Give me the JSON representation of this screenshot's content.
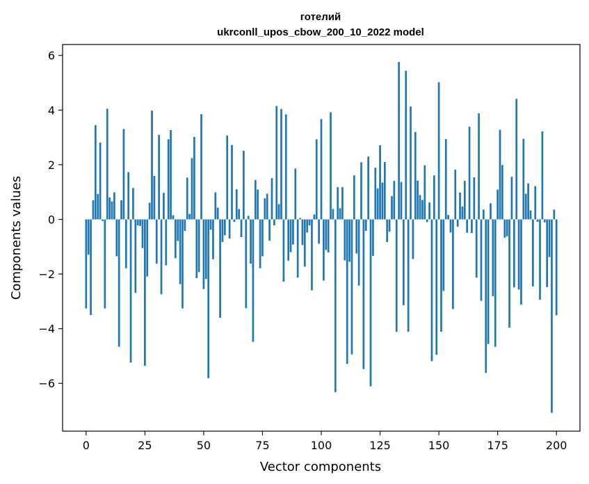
{
  "chart_data": {
    "type": "bar",
    "title": "готелий",
    "subtitle": "ukrconll_upos_cbow_200_10_2022 model",
    "xlabel": "Vector components",
    "ylabel": "Components values",
    "xlim": [
      -10,
      210
    ],
    "ylim": [
      -7.75,
      6.4
    ],
    "xticks": [
      0,
      25,
      50,
      75,
      100,
      125,
      150,
      175,
      200
    ],
    "yticks": [
      -6,
      -4,
      -2,
      0,
      2,
      4,
      6
    ],
    "bar_color": "#1f77b4",
    "grid": false,
    "legend": "none",
    "values": [
      -3.26,
      -1.29,
      -3.5,
      0.7,
      3.45,
      0.93,
      2.81,
      -0.06,
      -3.26,
      4.05,
      0.8,
      0.66,
      0.99,
      -1.35,
      -4.66,
      0.7,
      3.31,
      -1.79,
      1.73,
      -5.24,
      1.15,
      -2.69,
      -0.22,
      -0.24,
      -1.05,
      -5.36,
      -2.09,
      0.61,
      3.98,
      1.59,
      -1.62,
      3.09,
      -2.74,
      0.97,
      -1.68,
      2.93,
      3.27,
      0.15,
      -1.42,
      -0.79,
      -2.37,
      -3.26,
      -0.42,
      1.53,
      0.2,
      2.24,
      3.02,
      -2.15,
      -1.93,
      3.85,
      -2.55,
      -2.18,
      -5.81,
      -0.38,
      -1.46,
      0.99,
      0.43,
      -3.6,
      -0.83,
      -0.58,
      3.07,
      -0.7,
      2.72,
      -0.09,
      1.1,
      0.38,
      -0.65,
      2.51,
      -3.25,
      0.13,
      -1.62,
      -4.48,
      1.44,
      1.09,
      -1.79,
      -1.35,
      0.77,
      0.94,
      -0.78,
      1.51,
      -0.22,
      4.15,
      0.56,
      4.04,
      -2.28,
      3.84,
      -1.51,
      -1.2,
      -0.92,
      1.86,
      -2.13,
      0.05,
      -0.94,
      -1.73,
      -0.48,
      -0.22,
      -2.6,
      0.18,
      2.93,
      -0.89,
      3.67,
      -2.24,
      -1.12,
      -1.21,
      3.92,
      0.38,
      -6.32,
      1.18,
      0.41,
      1.18,
      -1.5,
      -5.29,
      -1.55,
      -4.94,
      1.61,
      -1.25,
      -2.42,
      2.09,
      -5.48,
      -0.42,
      2.3,
      -6.11,
      -1.34,
      1.89,
      1.13,
      2.71,
      1.35,
      2.1,
      -0.83,
      -0.45,
      0.85,
      1.41,
      -4.11,
      5.76,
      1.37,
      -3.14,
      5.44,
      -4.11,
      4.13,
      -1.45,
      3.2,
      1.42,
      0.89,
      0.71,
      1.98,
      -0.1,
      0.62,
      -5.19,
      1.61,
      -4.95,
      5.02,
      -4.11,
      -2.62,
      2.94,
      0.16,
      -0.48,
      -3.28,
      1.82,
      -0.27,
      0.98,
      0.47,
      1.41,
      -0.49,
      3.39,
      -0.5,
      1.54,
      -2.13,
      3.88,
      -2.98,
      0.36,
      -5.62,
      -4.56,
      0.59,
      -2.81,
      -4.66,
      1.09,
      3.28,
      1.99,
      -0.67,
      -0.62,
      -3.96,
      1.56,
      -2.49,
      4.41,
      -2.57,
      -3.12,
      2.95,
      0.94,
      1.32,
      0.33,
      -2.45,
      1.22,
      -0.09,
      -2.94,
      3.22,
      -0.11,
      -2.48,
      -1.38,
      -7.08,
      0.36,
      -3.51
    ]
  }
}
